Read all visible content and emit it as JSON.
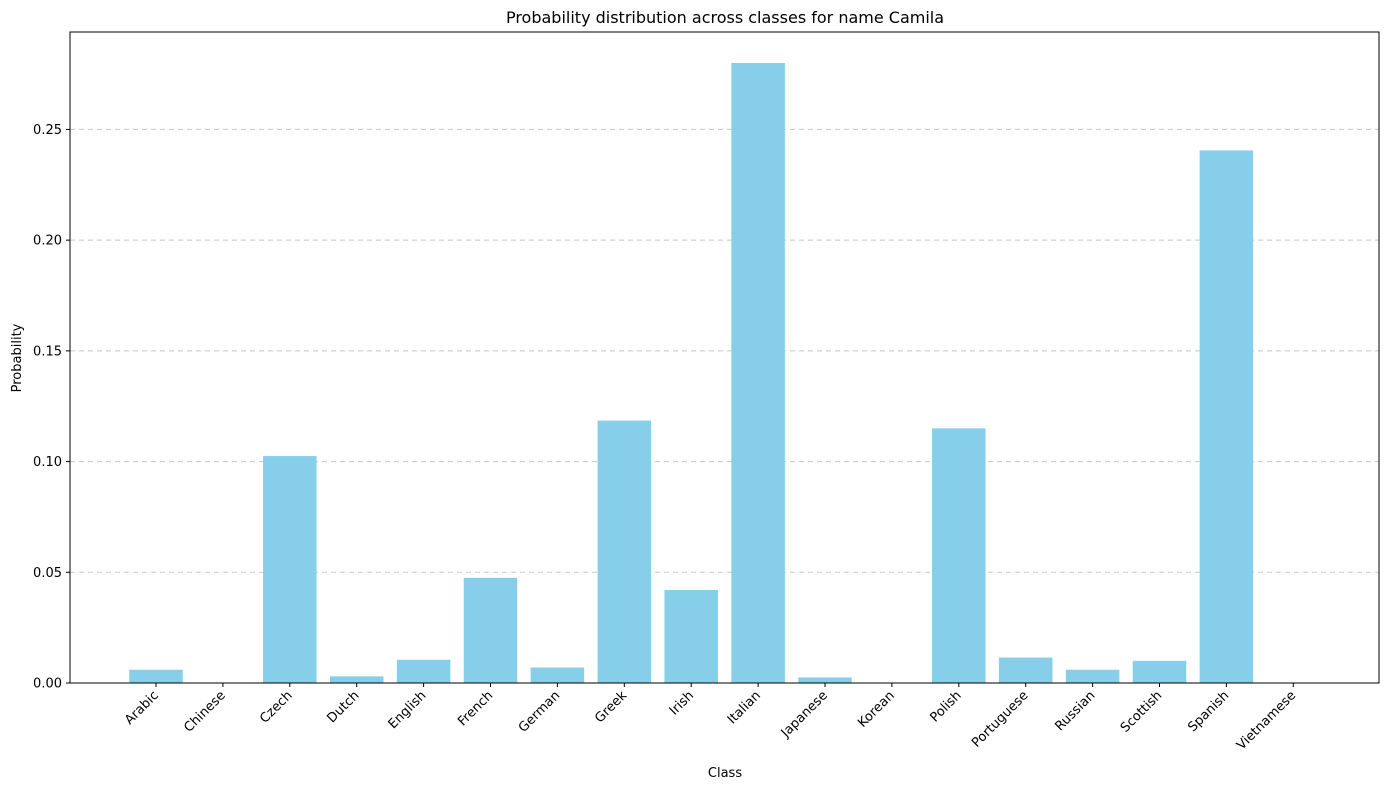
{
  "chart_data": {
    "type": "bar",
    "title": "Probability distribution across classes for name Camila",
    "xlabel": "Class",
    "ylabel": "Probability",
    "categories": [
      "Arabic",
      "Chinese",
      "Czech",
      "Dutch",
      "English",
      "French",
      "German",
      "Greek",
      "Irish",
      "Italian",
      "Japanese",
      "Korean",
      "Polish",
      "Portuguese",
      "Russian",
      "Scottish",
      "Spanish",
      "Vietnamese"
    ],
    "values": [
      0.006,
      0.0,
      0.1025,
      0.003,
      0.0105,
      0.0475,
      0.007,
      0.1185,
      0.042,
      0.28,
      0.0025,
      0.0,
      0.115,
      0.0115,
      0.006,
      0.01,
      0.2405,
      0.0
    ],
    "ylim": [
      0,
      0.294
    ],
    "yticks": [
      0.0,
      0.05,
      0.1,
      0.15,
      0.2,
      0.25
    ],
    "ytick_labels": [
      "0.00",
      "0.05",
      "0.10",
      "0.15",
      "0.20",
      "0.25"
    ],
    "grid": "y-dashed",
    "bar_color": "#87CEEB"
  }
}
